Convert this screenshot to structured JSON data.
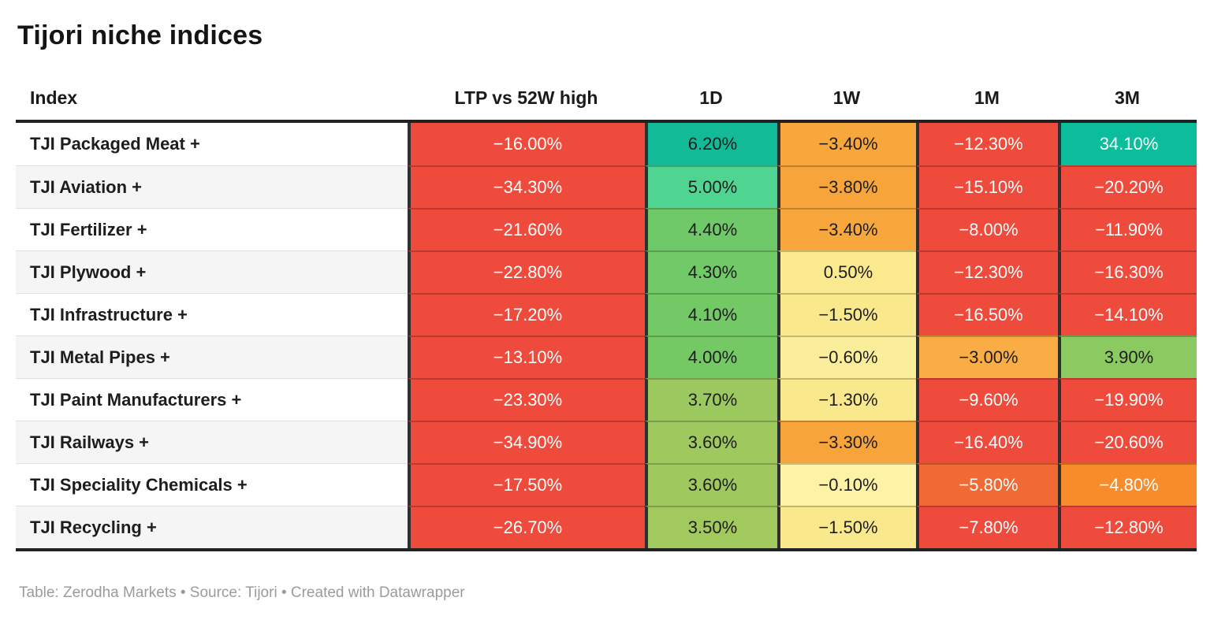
{
  "title": "Tijori niche indices",
  "footer": "Table: Zerodha Markets • Source: Tijori • Created with Datawrapper",
  "palette": {
    "red": "#ee4b3c",
    "teal_dark": "#0cbd9c",
    "teal": "#12ba98",
    "green_light": "#4fd591",
    "green": "#71c967",
    "yellow_green": "#9fc95e",
    "pale_yellow": "#fae88c",
    "orange": "#f8a73d",
    "orange_red": "#f26a33",
    "bright_orange": "#f78c2b",
    "header_border": "#212121",
    "column_separator": "#2f2f2f",
    "zebra_row": "#f5f5f5",
    "footer_text": "#9b9b9b"
  },
  "chart_data": {
    "type": "table",
    "columns": [
      "Index",
      "LTP vs 52W high",
      "1D",
      "1W",
      "1M",
      "3M"
    ],
    "rows": [
      {
        "index": "TJI Packaged Meat +",
        "cells": [
          {
            "v": "−16.00%",
            "bg": "#ee4b3c",
            "fg": "#ffffff"
          },
          {
            "v": "6.20%",
            "bg": "#12ba98",
            "fg": "#1d1d1d"
          },
          {
            "v": "−3.40%",
            "bg": "#f8a73d",
            "fg": "#1d1d1d"
          },
          {
            "v": "−12.30%",
            "bg": "#ee4b3c",
            "fg": "#ffffff"
          },
          {
            "v": "34.10%",
            "bg": "#0cbd9c",
            "fg": "#ffffff"
          }
        ]
      },
      {
        "index": "TJI Aviation +",
        "cells": [
          {
            "v": "−34.30%",
            "bg": "#ee4b3c",
            "fg": "#ffffff"
          },
          {
            "v": "5.00%",
            "bg": "#4fd591",
            "fg": "#1d1d1d"
          },
          {
            "v": "−3.80%",
            "bg": "#f7a43a",
            "fg": "#1d1d1d"
          },
          {
            "v": "−15.10%",
            "bg": "#ee4b3c",
            "fg": "#ffffff"
          },
          {
            "v": "−20.20%",
            "bg": "#ee4b3c",
            "fg": "#ffffff"
          }
        ]
      },
      {
        "index": "TJI Fertilizer +",
        "cells": [
          {
            "v": "−21.60%",
            "bg": "#ee4b3c",
            "fg": "#ffffff"
          },
          {
            "v": "4.40%",
            "bg": "#70c968",
            "fg": "#1d1d1d"
          },
          {
            "v": "−3.40%",
            "bg": "#f8a73d",
            "fg": "#1d1d1d"
          },
          {
            "v": "−8.00%",
            "bg": "#ee4b3c",
            "fg": "#ffffff"
          },
          {
            "v": "−11.90%",
            "bg": "#ee4b3c",
            "fg": "#ffffff"
          }
        ]
      },
      {
        "index": "TJI Plywood +",
        "cells": [
          {
            "v": "−22.80%",
            "bg": "#ee4b3c",
            "fg": "#ffffff"
          },
          {
            "v": "4.30%",
            "bg": "#71c967",
            "fg": "#1d1d1d"
          },
          {
            "v": "0.50%",
            "bg": "#fae98e",
            "fg": "#1d1d1d"
          },
          {
            "v": "−12.30%",
            "bg": "#ee4b3c",
            "fg": "#ffffff"
          },
          {
            "v": "−16.30%",
            "bg": "#ee4b3c",
            "fg": "#ffffff"
          }
        ]
      },
      {
        "index": "TJI Infrastructure +",
        "cells": [
          {
            "v": "−17.20%",
            "bg": "#ee4b3c",
            "fg": "#ffffff"
          },
          {
            "v": "4.10%",
            "bg": "#73c966",
            "fg": "#1d1d1d"
          },
          {
            "v": "−1.50%",
            "bg": "#fae88c",
            "fg": "#1d1d1d"
          },
          {
            "v": "−16.50%",
            "bg": "#ee4b3c",
            "fg": "#ffffff"
          },
          {
            "v": "−14.10%",
            "bg": "#ee4b3c",
            "fg": "#ffffff"
          }
        ]
      },
      {
        "index": "TJI Metal Pipes +",
        "cells": [
          {
            "v": "−13.10%",
            "bg": "#ee4b3c",
            "fg": "#ffffff"
          },
          {
            "v": "4.00%",
            "bg": "#75c965",
            "fg": "#1d1d1d"
          },
          {
            "v": "−0.60%",
            "bg": "#fbee9b",
            "fg": "#1d1d1d"
          },
          {
            "v": "−3.00%",
            "bg": "#f9ad44",
            "fg": "#1d1d1d"
          },
          {
            "v": "3.90%",
            "bg": "#8bca61",
            "fg": "#1d1d1d"
          }
        ]
      },
      {
        "index": "TJI Paint Manufacturers +",
        "cells": [
          {
            "v": "−23.30%",
            "bg": "#ee4b3c",
            "fg": "#ffffff"
          },
          {
            "v": "3.70%",
            "bg": "#9cc95f",
            "fg": "#1d1d1d"
          },
          {
            "v": "−1.30%",
            "bg": "#fae88d",
            "fg": "#1d1d1d"
          },
          {
            "v": "−9.60%",
            "bg": "#ee4b3c",
            "fg": "#ffffff"
          },
          {
            "v": "−19.90%",
            "bg": "#ee4b3c",
            "fg": "#ffffff"
          }
        ]
      },
      {
        "index": "TJI Railways +",
        "cells": [
          {
            "v": "−34.90%",
            "bg": "#ee4b3c",
            "fg": "#ffffff"
          },
          {
            "v": "3.60%",
            "bg": "#9fc95e",
            "fg": "#1d1d1d"
          },
          {
            "v": "−3.30%",
            "bg": "#f7a53b",
            "fg": "#1d1d1d"
          },
          {
            "v": "−16.40%",
            "bg": "#ee4b3c",
            "fg": "#ffffff"
          },
          {
            "v": "−20.60%",
            "bg": "#ee4b3c",
            "fg": "#ffffff"
          }
        ]
      },
      {
        "index": "TJI Speciality Chemicals +",
        "cells": [
          {
            "v": "−17.50%",
            "bg": "#ee4b3c",
            "fg": "#ffffff"
          },
          {
            "v": "3.60%",
            "bg": "#9fc95e",
            "fg": "#1d1d1d"
          },
          {
            "v": "−0.10%",
            "bg": "#fdf2a6",
            "fg": "#1d1d1d"
          },
          {
            "v": "−5.80%",
            "bg": "#f26a33",
            "fg": "#ffffff"
          },
          {
            "v": "−4.80%",
            "bg": "#f78c2b",
            "fg": "#ffffff"
          }
        ]
      },
      {
        "index": "TJI Recycling +",
        "cells": [
          {
            "v": "−26.70%",
            "bg": "#ee4b3c",
            "fg": "#ffffff"
          },
          {
            "v": "3.50%",
            "bg": "#a2c95d",
            "fg": "#1d1d1d"
          },
          {
            "v": "−1.50%",
            "bg": "#fae88c",
            "fg": "#1d1d1d"
          },
          {
            "v": "−7.80%",
            "bg": "#ee4b3c",
            "fg": "#ffffff"
          },
          {
            "v": "−12.80%",
            "bg": "#ee4b3c",
            "fg": "#ffffff"
          }
        ]
      }
    ]
  }
}
